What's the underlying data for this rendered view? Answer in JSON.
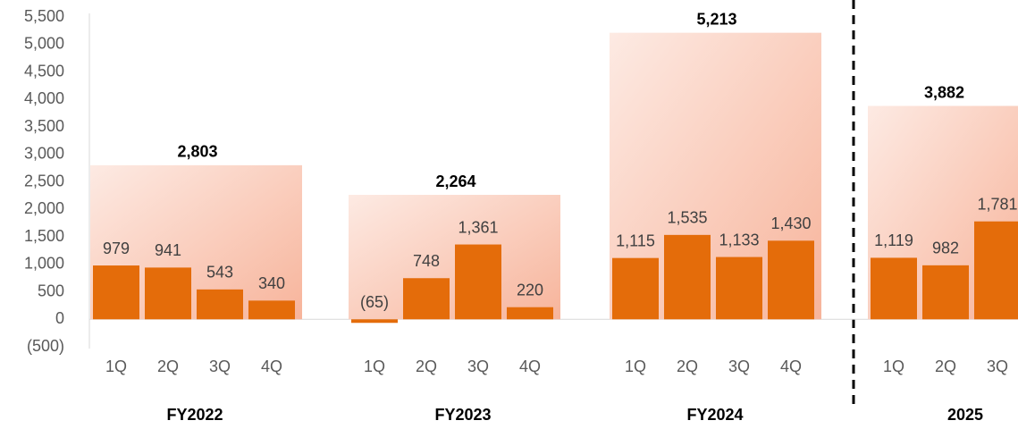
{
  "chart_data": {
    "type": "bar",
    "color": "#e46c0a",
    "ylim": [
      -500,
      5500
    ],
    "yticks": [
      {
        "value": -500,
        "label": "(500)"
      },
      0,
      {
        "value": 500,
        "label": "500"
      },
      {
        "value": 1000,
        "label": "1,000"
      },
      {
        "value": 1500,
        "label": "1,500"
      },
      {
        "value": 2000,
        "label": "2,000"
      },
      {
        "value": 2500,
        "label": "2,500"
      },
      {
        "value": 3000,
        "label": "3,000"
      },
      {
        "value": 3500,
        "label": "3,500"
      },
      {
        "value": 4000,
        "label": "4,000"
      },
      {
        "value": 4500,
        "label": "4,500"
      },
      {
        "value": 5000,
        "label": "5,000"
      },
      {
        "value": 5500,
        "label": "5,500"
      }
    ],
    "groups": [
      {
        "name": "FY2022",
        "total": 2803,
        "total_label": "2,803",
        "categories": [
          "1Q",
          "2Q",
          "3Q",
          "4Q"
        ],
        "values": [
          979,
          941,
          543,
          340
        ],
        "value_labels": [
          "979",
          "941",
          "543",
          "340"
        ]
      },
      {
        "name": "FY2023",
        "total": 2264,
        "total_label": "2,264",
        "categories": [
          "1Q",
          "2Q",
          "3Q",
          "4Q"
        ],
        "values": [
          -65,
          748,
          1361,
          220
        ],
        "value_labels": [
          "(65)",
          "748",
          "1,361",
          "220"
        ]
      },
      {
        "name": "FY2024",
        "total": 5213,
        "total_label": "5,213",
        "categories": [
          "1Q",
          "2Q",
          "3Q",
          "4Q"
        ],
        "values": [
          1115,
          1535,
          1133,
          1430
        ],
        "value_labels": [
          "1,115",
          "1,535",
          "1,133",
          "1,430"
        ]
      },
      {
        "name": "2025",
        "total": 3882,
        "total_label": "3,882",
        "categories": [
          "1Q",
          "2Q",
          "3Q"
        ],
        "values": [
          1119,
          982,
          1781
        ],
        "value_labels": [
          "1,119",
          "982",
          "1,781"
        ]
      }
    ]
  }
}
